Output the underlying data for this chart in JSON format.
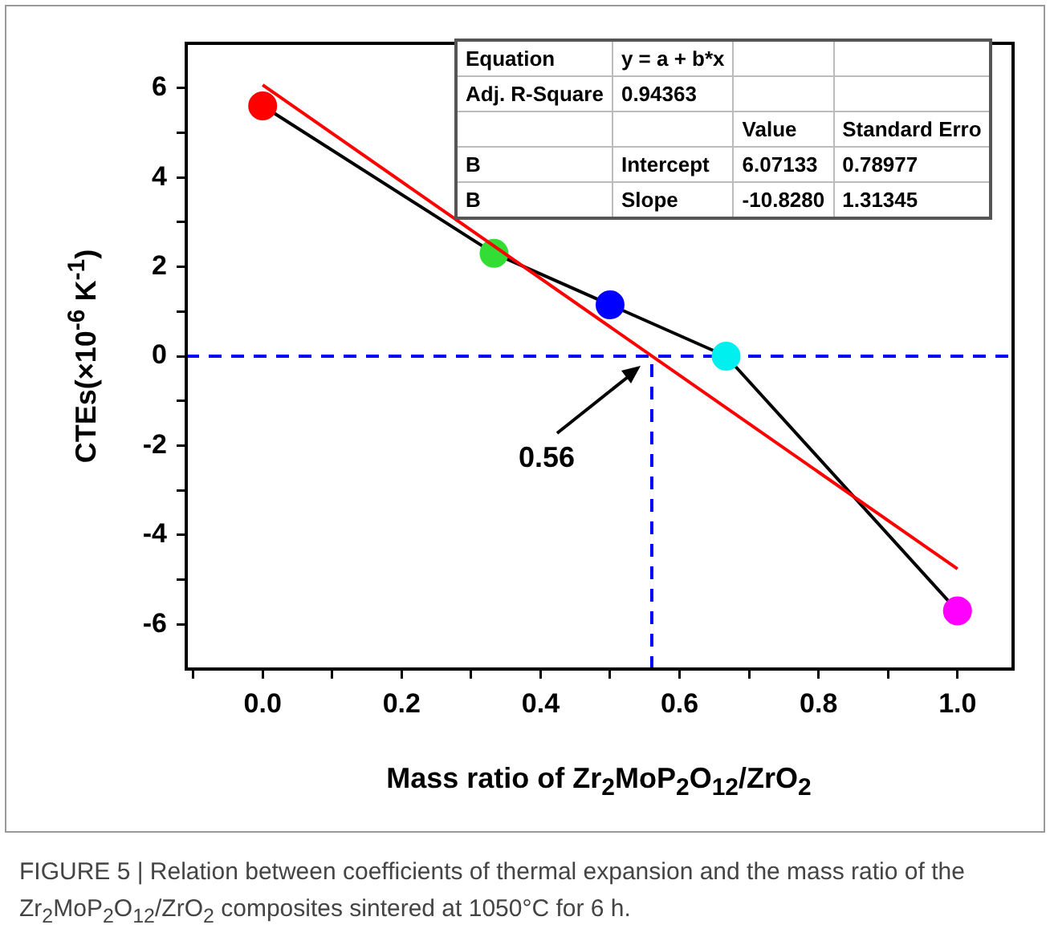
{
  "chart_data": {
    "type": "scatter",
    "xlabel": "Mass ratio of Zr$_{2}$MoP$_{2}$O$_{12}$/ZrO$_{2}$",
    "ylabel": "CTEs(×10$^{-6}$ K$^{-1}$)",
    "xlim": [
      -0.11,
      1.08
    ],
    "ylim": [
      -7,
      7
    ],
    "xticks": [
      {
        "value": -0.1,
        "label": null
      },
      {
        "value": 0,
        "label": "0.0"
      },
      {
        "value": 0.1,
        "label": null
      },
      0.2,
      {
        "value": 0.3,
        "label": null
      },
      0.4,
      {
        "value": 0.5,
        "label": null
      },
      0.6,
      {
        "value": 0.7,
        "label": null
      },
      0.8,
      {
        "value": 0.9,
        "label": null
      },
      {
        "value": 1,
        "label": "1.0"
      }
    ],
    "yticks": [
      -6,
      {
        "value": -5,
        "label": null
      },
      -4,
      {
        "value": -3,
        "label": null
      },
      -2,
      {
        "value": -1,
        "label": null
      },
      0,
      {
        "value": 1,
        "label": null
      },
      2,
      {
        "value": 3,
        "label": null
      },
      4,
      {
        "value": 5,
        "label": null
      },
      6
    ],
    "grid": false,
    "legend": false,
    "series": [
      {
        "type": "line",
        "color": "#000000",
        "colors": [
          "#ff0000",
          "#33dd33",
          "#0000ff",
          "#00f0f0",
          "#ff00ff"
        ],
        "x": [
          0,
          0.333,
          0.5,
          0.667,
          1.0
        ],
        "values": [
          5.6,
          2.3,
          1.15,
          0.0,
          -5.7
        ],
        "marker": "circle"
      },
      {
        "type": "line",
        "color": "#ff0000",
        "x": [
          0,
          1
        ],
        "values": [
          6.07,
          -4.76
        ],
        "marker": "none"
      },
      {
        "type": "line",
        "color": "#0000ff",
        "x": [
          0.56,
          0.56
        ],
        "values": [
          -7,
          0
        ],
        "marker": "none",
        "line_style": "dashed"
      }
    ],
    "ref_lines": [
      {
        "axis": "y",
        "value": 0,
        "color": "#0000ff",
        "line_style": "dashed"
      }
    ],
    "annotations": [
      "0.56",
      "Equation\ty = a + b*x\t\t",
      "Adj. R-Square\t0.94363\t\t",
      "\t\tValue\tStandard Erro",
      "B\tIntercept\t6.07133\t0.78977",
      "B\tSlope\t-10.8280\t1.31345",
      "FIGURE 5 | Relation between coefficients of thermal expansion and the mass ratio of the Zr$_{2}$MoP$_{2}$O$_{12}$/ZrO$_{2}$ composites sintered at 1050°C for 6 h."
    ]
  }
}
